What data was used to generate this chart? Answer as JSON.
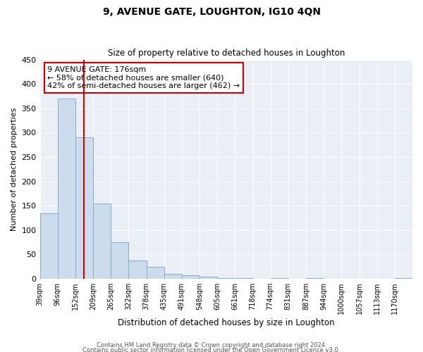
{
  "title": "9, AVENUE GATE, LOUGHTON, IG10 4QN",
  "subtitle": "Size of property relative to detached houses in Loughton",
  "xlabel": "Distribution of detached houses by size in Loughton",
  "ylabel": "Number of detached properties",
  "bar_color": "#ccdcec",
  "bar_edge_color": "#88aac8",
  "annotation_box_title": "9 AVENUE GATE: 176sqm",
  "annotation_line1": "← 58% of detached houses are smaller (640)",
  "annotation_line2": "42% of semi-detached houses are larger (462) →",
  "annotation_box_color": "#ffffff",
  "annotation_box_edge": "#cc0000",
  "marker_line_color": "#cc0000",
  "marker_line_index": 2.5,
  "ylim": [
    0,
    450
  ],
  "yticks": [
    0,
    50,
    100,
    150,
    200,
    250,
    300,
    350,
    400,
    450
  ],
  "footer1": "Contains HM Land Registry data © Crown copyright and database right 2024.",
  "footer2": "Contains public sector information licensed under the Open Government Licence v3.0.",
  "xtick_labels": [
    "39sqm",
    "96sqm",
    "152sqm",
    "209sqm",
    "265sqm",
    "322sqm",
    "378sqm",
    "435sqm",
    "491sqm",
    "548sqm",
    "605sqm",
    "661sqm",
    "718sqm",
    "774sqm",
    "831sqm",
    "887sqm",
    "944sqm",
    "1000sqm",
    "1057sqm",
    "1113sqm",
    "1170sqm"
  ],
  "bar_values": [
    135,
    370,
    290,
    155,
    75,
    38,
    25,
    10,
    8,
    5,
    2,
    1,
    0,
    1,
    0,
    1,
    0,
    0,
    0,
    0,
    1
  ]
}
